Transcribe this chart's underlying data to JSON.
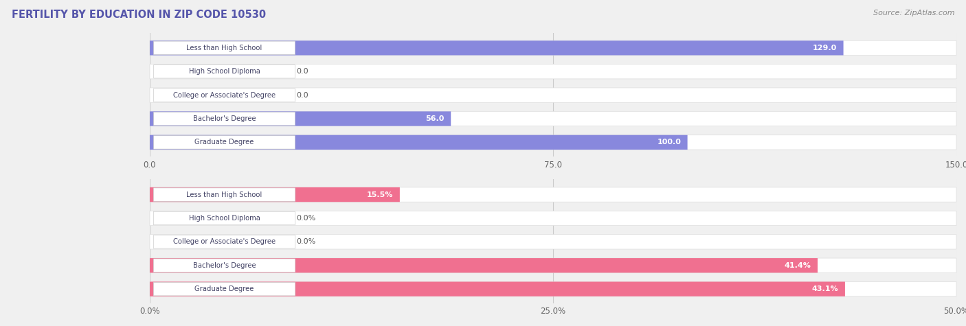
{
  "title": "FERTILITY BY EDUCATION IN ZIP CODE 10530",
  "source": "Source: ZipAtlas.com",
  "top_chart": {
    "categories": [
      "Less than High School",
      "High School Diploma",
      "College or Associate's Degree",
      "Bachelor's Degree",
      "Graduate Degree"
    ],
    "values": [
      129.0,
      0.0,
      0.0,
      56.0,
      100.0
    ],
    "bar_color": "#8888dd",
    "xlim": [
      0,
      150
    ],
    "xticks": [
      0.0,
      75.0,
      150.0
    ],
    "xtick_labels": [
      "0.0",
      "75.0",
      "150.0"
    ]
  },
  "bottom_chart": {
    "categories": [
      "Less than High School",
      "High School Diploma",
      "College or Associate's Degree",
      "Bachelor's Degree",
      "Graduate Degree"
    ],
    "values": [
      15.5,
      0.0,
      0.0,
      41.4,
      43.1
    ],
    "bar_color": "#f07090",
    "xlim": [
      0,
      50
    ],
    "xticks": [
      0.0,
      25.0,
      50.0
    ],
    "xtick_labels": [
      "0.0%",
      "25.0%",
      "50.0%"
    ]
  },
  "bg_color": "#f0f0f0",
  "bar_bg_color": "#ffffff",
  "title_color": "#5555aa",
  "source_color": "#888888"
}
